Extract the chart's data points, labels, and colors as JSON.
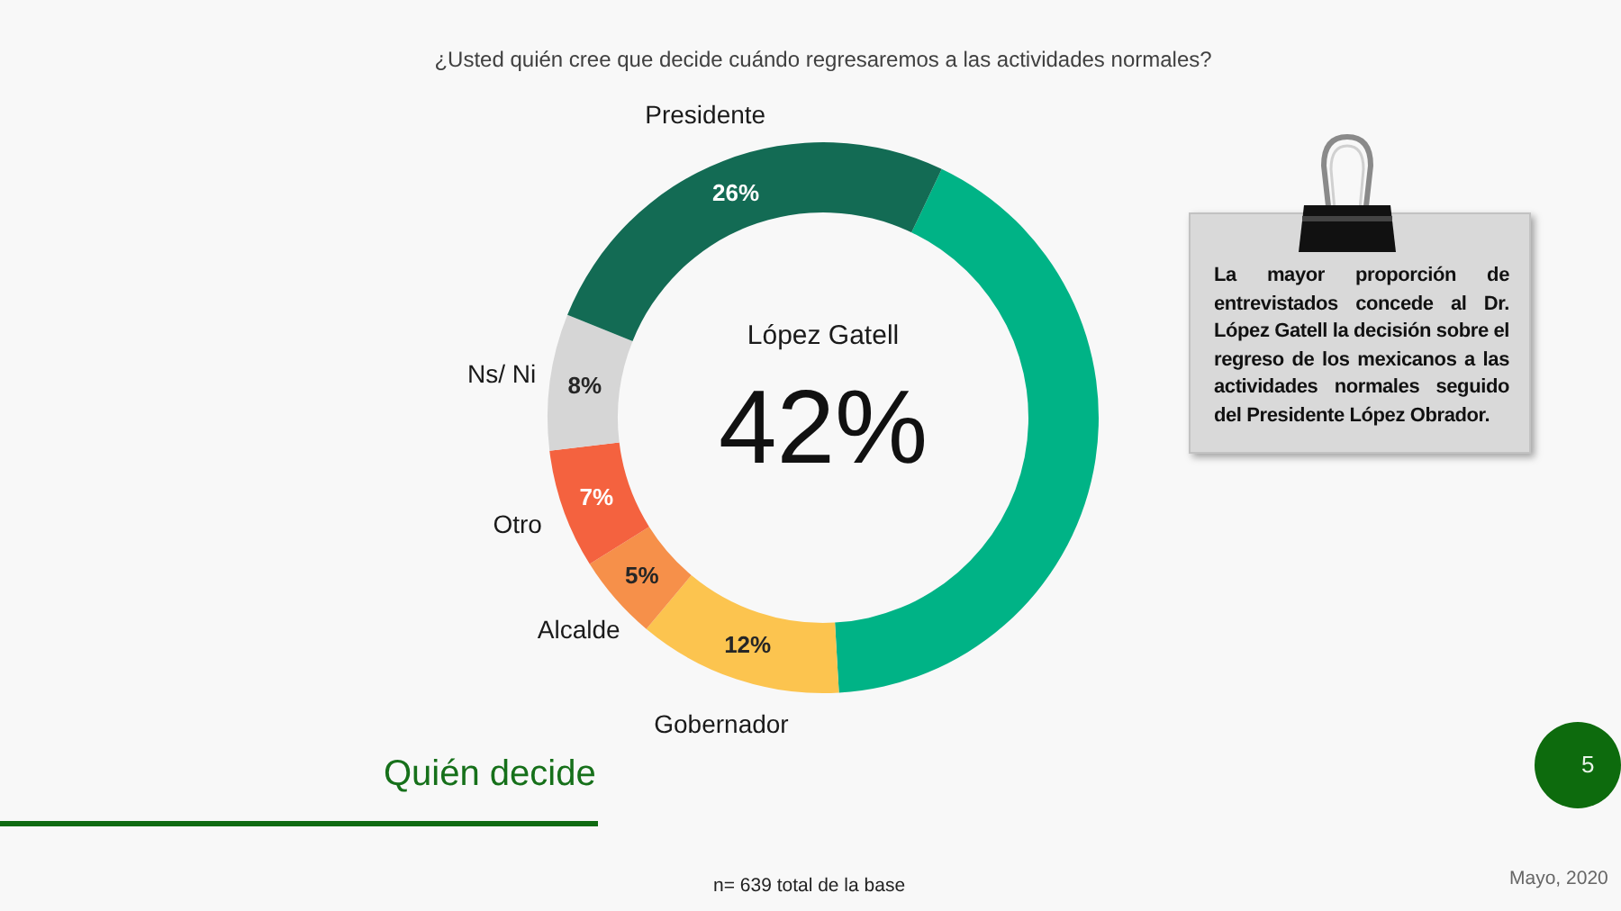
{
  "chart_data": {
    "type": "donut",
    "title": "¿Usted quién cree que decide cuándo regresaremos a las actividades normales?",
    "categories": [
      "López Gatell",
      "Gobernador",
      "Alcalde",
      "Otro",
      "Ns/ Ni",
      "Presidente"
    ],
    "values": [
      42,
      12,
      5,
      7,
      8,
      26
    ],
    "colors": [
      "#00b386",
      "#fcc44f",
      "#f6904a",
      "#f4623f",
      "#d6d6d6",
      "#136b54"
    ],
    "value_labels": [
      "42%",
      "12%",
      "5%",
      "7%",
      "8%",
      "26%"
    ],
    "annotations": [
      "La mayor proporción de entrevistados concede al Dr. López Gatell la decisión sobre el regreso de los mexicanos a las actividades normales seguido del Presidente López Obrador.",
      "Quién decide",
      "n= 639 total de la base",
      "Mayo, 2020",
      "5"
    ]
  }
}
